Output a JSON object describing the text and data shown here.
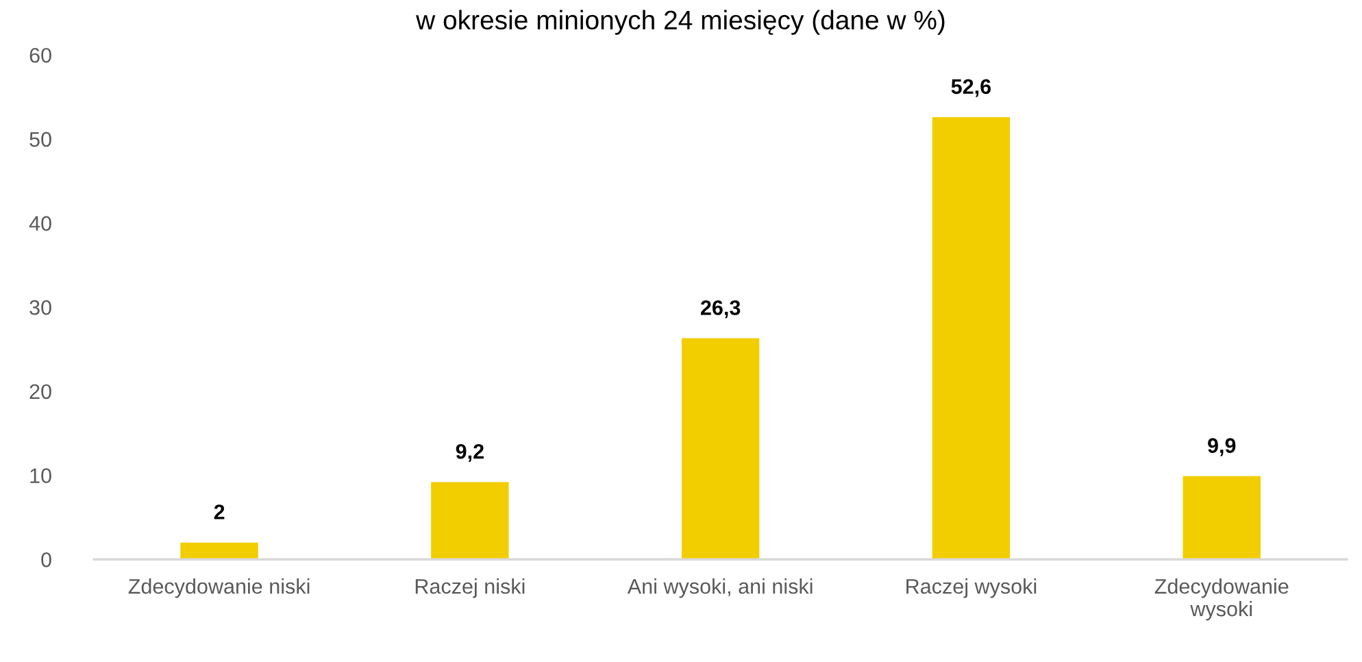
{
  "chart_data": {
    "type": "bar",
    "title": "w okresie minionych 24 miesięcy (dane w %)",
    "categories": [
      "Zdecydowanie niski",
      "Raczej niski",
      "Ani wysoki, ani niski",
      "Raczej wysoki",
      "Zdecydowanie\nwysoki"
    ],
    "values": [
      2,
      9.2,
      26.3,
      52.6,
      9.9
    ],
    "color": "#f2cd00",
    "value_labels": [
      "2",
      "9,2",
      "26,3",
      "52,6",
      "9,9"
    ],
    "ylim": [
      0,
      60
    ],
    "yticks": [
      0,
      10,
      20,
      30,
      40,
      50,
      60
    ]
  }
}
